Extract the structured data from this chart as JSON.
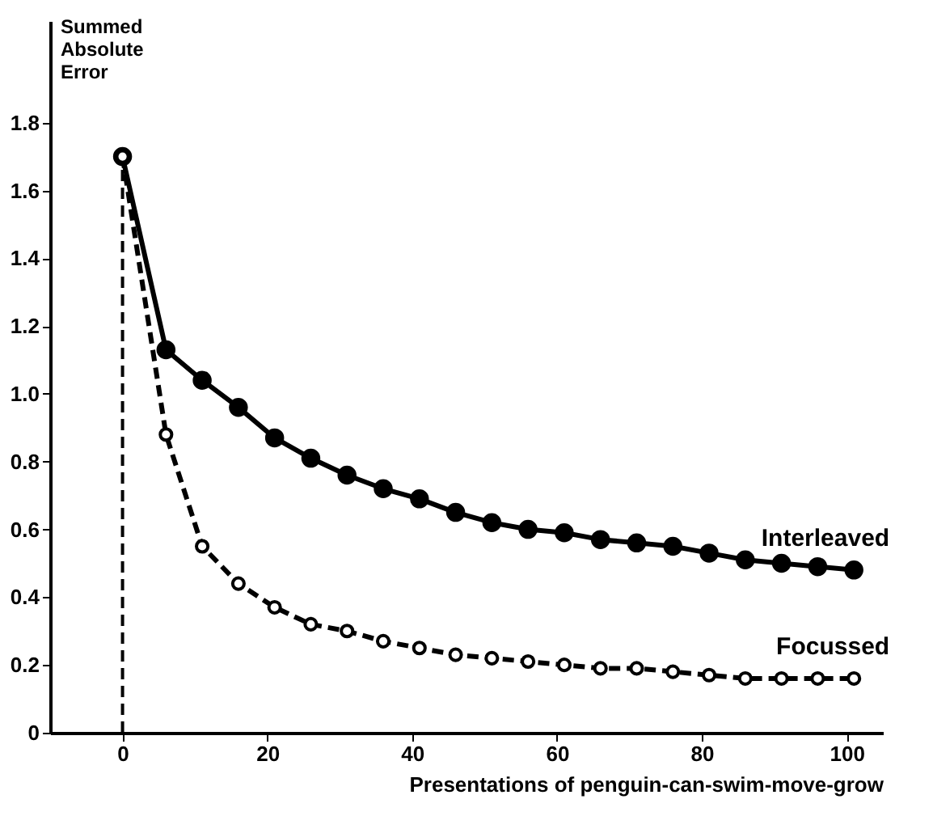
{
  "chart_data": {
    "type": "line",
    "xlabel": "Presentations of penguin-can-swim-move-grow",
    "ylabel": "Summed Absolute Error",
    "xlim": [
      -10,
      105
    ],
    "ylim": [
      0,
      2.1
    ],
    "xticks": [
      0,
      20,
      40,
      60,
      80,
      100
    ],
    "yticks": [
      0,
      0.2,
      0.4,
      0.6,
      0.8,
      {
        "value": 1.0,
        "label": "1.0"
      },
      1.2,
      1.4,
      1.6,
      1.8
    ],
    "grid": false,
    "marker": "circle",
    "ref_lines": [
      {
        "axis": "x",
        "value": 0,
        "line_style": "dashed",
        "color": "#000000"
      }
    ],
    "series": [
      {
        "name": "Interleaved",
        "color": "#000000",
        "line_style": "solid",
        "x": [
          0,
          6,
          11,
          16,
          21,
          26,
          31,
          36,
          41,
          46,
          51,
          56,
          61,
          66,
          71,
          76,
          81,
          86,
          91,
          96,
          101
        ],
        "values": [
          1.7,
          1.13,
          1.04,
          0.96,
          0.87,
          0.81,
          0.76,
          0.72,
          0.69,
          0.65,
          0.62,
          0.6,
          0.59,
          0.57,
          0.56,
          0.55,
          0.53,
          0.51,
          0.5,
          0.49,
          0.48
        ]
      },
      {
        "name": "Focussed",
        "color": "#000000",
        "line_style": "dashed",
        "x": [
          0,
          6,
          11,
          16,
          21,
          26,
          31,
          36,
          41,
          46,
          51,
          56,
          61,
          66,
          71,
          76,
          81,
          86,
          91,
          96,
          101
        ],
        "values": [
          1.7,
          0.88,
          0.55,
          0.44,
          0.37,
          0.32,
          0.3,
          0.27,
          0.25,
          0.23,
          0.22,
          0.21,
          0.2,
          0.19,
          0.19,
          0.18,
          0.17,
          0.16,
          0.16,
          0.16,
          0.16
        ]
      }
    ]
  }
}
